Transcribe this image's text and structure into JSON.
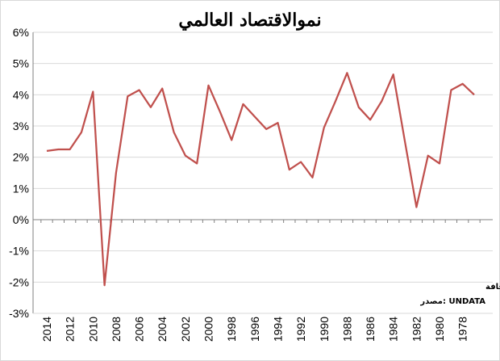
{
  "chart_data": {
    "type": "line",
    "title": "نموالاقتصاد العالمي",
    "xlabel": "",
    "ylabel": "",
    "ylim": [
      -3,
      6
    ],
    "y_ticks": [
      "6%",
      "5%",
      "4%",
      "3%",
      "2%",
      "1%",
      "0%",
      "-1%",
      "-2%",
      "-3%"
    ],
    "x_reversed": true,
    "x_tick_labels": [
      "2014",
      "2012",
      "2010",
      "2008",
      "2006",
      "2004",
      "2002",
      "2000",
      "1998",
      "1996",
      "1994",
      "1992",
      "1990",
      "1988",
      "1986",
      "1984",
      "1982",
      "1980",
      "1978"
    ],
    "grid": "horizontal",
    "legend": "none",
    "series": [
      {
        "color": "#c0504d",
        "x": [
          2014,
          2013,
          2012,
          2011,
          2010,
          2009,
          2008,
          2007,
          2006,
          2005,
          2004,
          2003,
          2002,
          2001,
          2000,
          1999,
          1998,
          1997,
          1996,
          1995,
          1994,
          1993,
          1992,
          1991,
          1990,
          1989,
          1988,
          1987,
          1986,
          1985,
          1984,
          1983,
          1982,
          1981,
          1980,
          1979,
          1978,
          1977
        ],
        "values": [
          2.2,
          2.25,
          2.25,
          2.8,
          4.1,
          -2.1,
          1.5,
          3.95,
          4.15,
          3.6,
          4.2,
          2.8,
          2.05,
          1.8,
          4.3,
          3.45,
          2.55,
          3.7,
          3.3,
          2.9,
          3.1,
          1.6,
          1.85,
          1.35,
          2.95,
          3.8,
          4.7,
          3.6,
          3.2,
          3.8,
          4.65,
          2.5,
          0.4,
          2.05,
          1.8,
          4.15,
          4.35,
          4.0
        ]
      }
    ],
    "annotations": [
      "د. جاسم عجافة",
      "مصدر: UNDATA"
    ]
  }
}
